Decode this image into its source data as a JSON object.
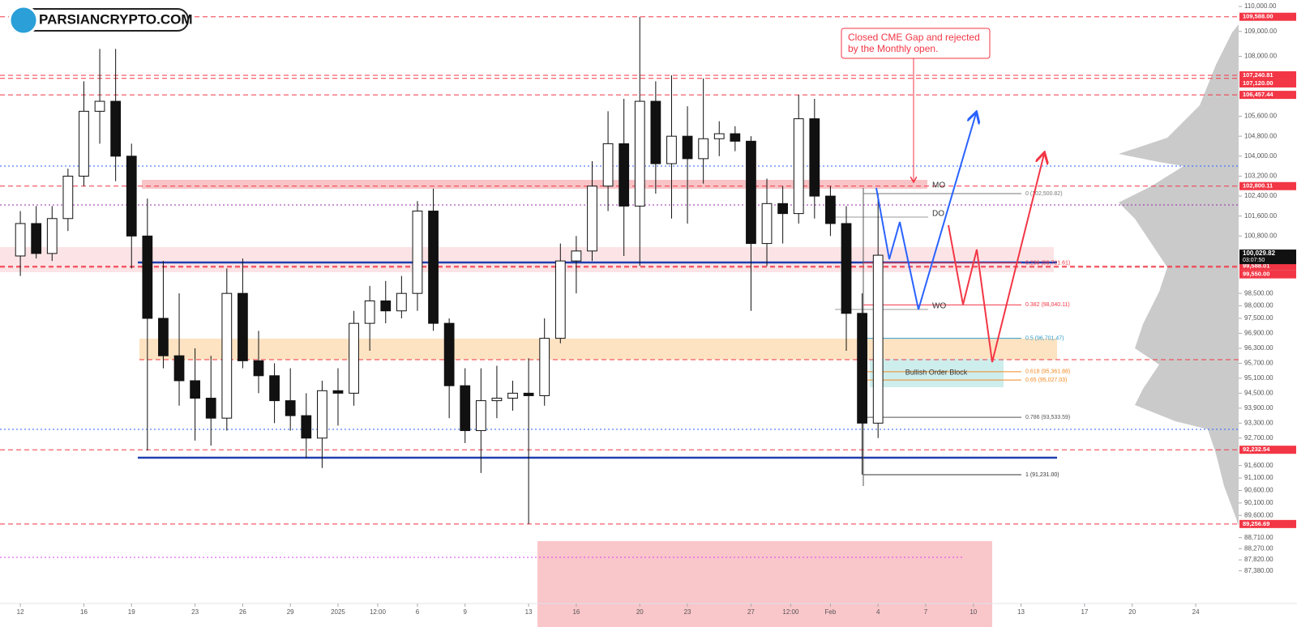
{
  "chart_data": {
    "type": "candlestick",
    "logo": "PARSIANCRYPTO.COM",
    "annotation": "Closed CME Gap and rejected by the Monthly open.",
    "notes": [
      "MO",
      "DO",
      "WO",
      "Bullish Order Block"
    ],
    "ylim": [
      86070,
      110260
    ],
    "xlim": [
      -1.28,
      76.7
    ],
    "yticks": [
      {
        "value": 110000,
        "label": "110,000.00"
      },
      {
        "value": 109000,
        "label": "109,000.00"
      },
      {
        "value": 108000,
        "label": "108,000.00"
      },
      {
        "value": 105600,
        "label": "105,600.00"
      },
      {
        "value": 104800,
        "label": "104,800.00"
      },
      {
        "value": 104000,
        "label": "104,000.00"
      },
      {
        "value": 103200,
        "label": "103,200.00"
      },
      {
        "value": 102400,
        "label": "102,400.00"
      },
      {
        "value": 101600,
        "label": "101,600.00"
      },
      {
        "value": 100800,
        "label": "100,800.00"
      },
      {
        "value": 98500,
        "label": "98,500.00"
      },
      {
        "value": 98000,
        "label": "98,000.00"
      },
      {
        "value": 97500,
        "label": "97,500.00"
      },
      {
        "value": 96900,
        "label": "96,900.00"
      },
      {
        "value": 96300,
        "label": "96,300.00"
      },
      {
        "value": 95700,
        "label": "95,700.00"
      },
      {
        "value": 95100,
        "label": "95,100.00"
      },
      {
        "value": 94500,
        "label": "94,500.00"
      },
      {
        "value": 93900,
        "label": "93,900.00"
      },
      {
        "value": 93300,
        "label": "93,300.00"
      },
      {
        "value": 92700,
        "label": "92,700.00"
      },
      {
        "value": 91600,
        "label": "91,600.00"
      },
      {
        "value": 91100,
        "label": "91,100.00"
      },
      {
        "value": 90600,
        "label": "90,600.00"
      },
      {
        "value": 90100,
        "label": "90,100.00"
      },
      {
        "value": 89600,
        "label": "89,600.00"
      },
      {
        "value": 88710,
        "label": "88,710.00"
      },
      {
        "value": 88270,
        "label": "88,270.00"
      },
      {
        "value": 87820,
        "label": "87,820.00"
      },
      {
        "value": 87380,
        "label": "87,380.00"
      }
    ],
    "xticks": [
      {
        "value": 0,
        "label": "12"
      },
      {
        "value": 4,
        "label": "16"
      },
      {
        "value": 7,
        "label": "19"
      },
      {
        "value": 11,
        "label": "23"
      },
      {
        "value": 14,
        "label": "26"
      },
      {
        "value": 17,
        "label": "29"
      },
      {
        "value": 20,
        "label": "2025"
      },
      {
        "value": 22.5,
        "label": "12:00"
      },
      {
        "value": 25,
        "label": "6"
      },
      {
        "value": 28,
        "label": "9"
      },
      {
        "value": 32,
        "label": "13"
      },
      {
        "value": 35,
        "label": "16"
      },
      {
        "value": 39,
        "label": "20"
      },
      {
        "value": 42,
        "label": "23"
      },
      {
        "value": 46,
        "label": "27"
      },
      {
        "value": 48.5,
        "label": "12:00"
      },
      {
        "value": 51,
        "label": "Feb"
      },
      {
        "value": 54,
        "label": "4"
      },
      {
        "value": 57,
        "label": "7"
      },
      {
        "value": 60,
        "label": "10"
      },
      {
        "value": 63,
        "label": "13"
      },
      {
        "value": 67,
        "label": "17"
      },
      {
        "value": 70,
        "label": "20"
      },
      {
        "value": 74,
        "label": "24"
      }
    ],
    "open": [
      100000,
      101300,
      100100,
      101500,
      103200,
      105800,
      106200,
      104000,
      100800,
      97500,
      96000,
      95000,
      94300,
      93500,
      98500,
      95800,
      95200,
      94200,
      93600,
      92700,
      94600,
      94500,
      97300,
      98200,
      97800,
      98500,
      101800,
      97300,
      94800,
      93000,
      94200,
      94300,
      94500,
      94400,
      96700,
      99800,
      100200,
      102800,
      104500,
      102000,
      106200,
      103700,
      104800,
      103900,
      104700,
      104900,
      104600,
      100500,
      102100,
      101700,
      105500,
      102400,
      101300,
      97700,
      93300
    ],
    "high": [
      101800,
      102000,
      102000,
      103500,
      107000,
      108300,
      108300,
      104500,
      102300,
      99800,
      98500,
      96300,
      96000,
      99500,
      99900,
      97000,
      95700,
      95500,
      94500,
      95000,
      95500,
      97800,
      98800,
      99000,
      99200,
      102200,
      102700,
      97500,
      95500,
      95500,
      95600,
      95000,
      95900,
      97500,
      100500,
      100800,
      103800,
      105800,
      106300,
      109588,
      107000,
      107240.81,
      106000,
      107120,
      105400,
      105200,
      104800,
      103100,
      102800,
      106457.44,
      106300,
      102800,
      102000,
      98500,
      102500
    ],
    "low": [
      99200,
      99900,
      99800,
      101000,
      102800,
      104500,
      103000,
      99500,
      92200,
      95500,
      94000,
      92600,
      92400,
      93000,
      95500,
      94500,
      93300,
      93000,
      91900,
      91500,
      93200,
      94000,
      96200,
      97300,
      97500,
      97800,
      97000,
      93500,
      92500,
      91300,
      93500,
      93800,
      89256.69,
      94000,
      96500,
      98500,
      99800,
      101800,
      100000,
      99600,
      102500,
      101500,
      101300,
      102900,
      104000,
      104200,
      97800,
      99600,
      100500,
      101300,
      101500,
      100800,
      96200,
      91231,
      92700
    ],
    "close": [
      101300,
      100100,
      101500,
      103200,
      105800,
      106200,
      104000,
      100800,
      97500,
      96000,
      95000,
      94300,
      93500,
      98500,
      95800,
      95200,
      94200,
      93600,
      92700,
      94600,
      94500,
      97300,
      98200,
      97800,
      98500,
      101800,
      97300,
      94800,
      93000,
      94200,
      94300,
      94500,
      94400,
      96700,
      99800,
      100200,
      102800,
      104500,
      102000,
      106200,
      103700,
      104800,
      103900,
      104700,
      104900,
      104600,
      100500,
      102100,
      101700,
      105500,
      102400,
      101300,
      97700,
      93300,
      100029.82
    ],
    "up_color": "#ffffff",
    "down_color": "#111111",
    "price_tags": [
      {
        "value": 109588,
        "label": "109,588.00"
      },
      {
        "value": 107240.81,
        "label": "107,240.81"
      },
      {
        "value": 107120,
        "label": "107,120.00"
      },
      {
        "value": 106457.44,
        "label": "106,457.44"
      },
      {
        "value": 102800.11,
        "label": "102,800.11"
      },
      {
        "value": 99588.01,
        "label": "99,588.01"
      },
      {
        "value": 99550,
        "label": "99,550.00"
      },
      {
        "value": 92232.54,
        "label": "92,232.54"
      },
      {
        "value": 89256.69,
        "label": "89,256.69"
      }
    ],
    "tag_color": "#f23645",
    "last_price": {
      "value": 100029.82,
      "label": "100,029.82",
      "countdown": "03:07:50"
    },
    "fib_levels": [
      {
        "value": 102500.82,
        "label": "0 (102,500.82)",
        "color": "#777777"
      },
      {
        "value": 99721.61,
        "label": "0.236 (99,721.61)",
        "color": "#f23645"
      },
      {
        "value": 98040.11,
        "label": "0.382 (98,040.11)",
        "color": "#f23645"
      },
      {
        "value": 96701.47,
        "label": "0.5 (96,701.47)",
        "color": "#2f9bc9"
      },
      {
        "value": 95361.88,
        "label": "0.618 (95,361.88)",
        "color": "#f08a24"
      },
      {
        "value": 95027.03,
        "label": "0.65 (95,027.03)",
        "color": "#f08a24"
      },
      {
        "value": 93533.59,
        "label": "0.786 (93,533.59)",
        "color": "#555555"
      },
      {
        "value": 91231,
        "label": "1 (91,231.00)",
        "color": "#333333"
      }
    ]
  }
}
